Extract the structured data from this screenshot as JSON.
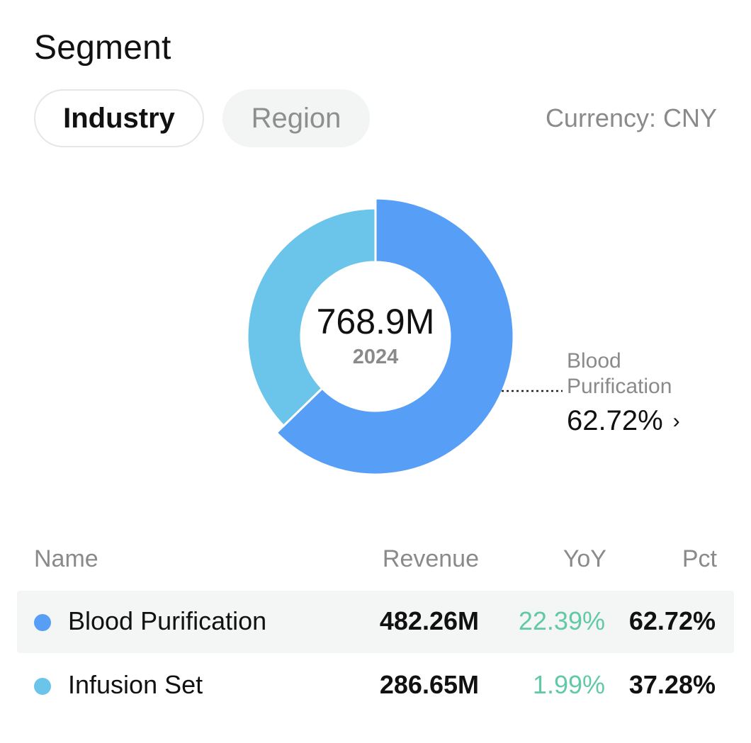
{
  "header": {
    "title": "Segment",
    "currency": "Currency: CNY"
  },
  "tabs": [
    {
      "label": "Industry",
      "active": true
    },
    {
      "label": "Region",
      "active": false
    }
  ],
  "donut": {
    "center_value": "768.9M",
    "center_year": "2024",
    "callout": {
      "name": "Blood Purification",
      "pct": "62.72%"
    }
  },
  "table": {
    "headers": {
      "name": "Name",
      "revenue": "Revenue",
      "yoy": "YoY",
      "pct": "Pct"
    },
    "rows": [
      {
        "name": "Blood Purification",
        "revenue": "482.26M",
        "yoy": "22.39%",
        "pct": "62.72%",
        "color": "#579ef7",
        "highlighted": true
      },
      {
        "name": "Infusion Set",
        "revenue": "286.65M",
        "yoy": "1.99%",
        "pct": "37.28%",
        "color": "#6bc5ea",
        "highlighted": false
      }
    ]
  },
  "chart_data": {
    "type": "pie",
    "categories": [
      "Blood Purification",
      "Infusion Set"
    ],
    "values": [
      62.72,
      37.28
    ],
    "colors": [
      "#579ef7",
      "#6bc5ea"
    ],
    "total": "768.9M",
    "year": "2024"
  }
}
